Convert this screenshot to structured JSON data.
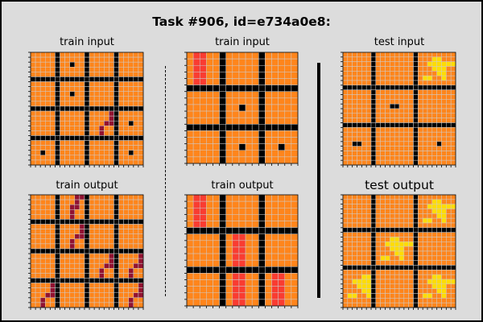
{
  "title": "Task #906, id=e734a0e8:",
  "palette": {
    "0": "#000000",
    "1": "#1e93ff",
    "2": "#f93c31",
    "3": "#4fcc30",
    "4": "#ffdc00",
    "5": "#999999",
    "6": "#e53aa3",
    "7": "#ff851b",
    "8": "#87d8f1",
    "9": "#921231"
  },
  "gridline_color": "#cccccc",
  "panels": [
    {
      "label": "train input",
      "grid": [
        "77777077777077777077777",
        "77777077777077777077777",
        "77777077077077777077777",
        "77777077777077777077777",
        "77777077777077777077777",
        "00000000000000000000000",
        "77777077777077777077777",
        "77777077777077777077777",
        "77777077077077777077777",
        "77777077777077777077777",
        "77777077777077777077777",
        "00000000000000000000000",
        "77777077777077779077777",
        "77777077777077779077777",
        "77777077777077799077077",
        "77777077777077977077777",
        "77777077777077977077777",
        "00000000000000000000000",
        "77777077777077777077777",
        "77777077777077777077777",
        "77077077777077777077077",
        "77777077777077777077777",
        "77777077777077777077777"
      ]
    },
    {
      "label": "train input",
      "grid": [
        "72277077777077777",
        "72277077777077777",
        "72277077777077777",
        "72277077777077777",
        "72277077777077777",
        "00000000000000000",
        "77777077777077777",
        "77777077777077777",
        "77777077077077777",
        "77777077777077777",
        "77777077777077777",
        "00000000000000000",
        "77777077777077777",
        "77777077777077777",
        "77777077077077077",
        "77777077777077777",
        "77777077777077777"
      ]
    },
    {
      "label": "test input",
      "grid": [
        "777777077777777077777777",
        "777777077777777077744777",
        "777777077777777077444444",
        "777777077777777077744477",
        "777777077777777077774477",
        "777777077777777074477477",
        "777777077777777077777777",
        "000000000000000000000000",
        "777777077777777077777777",
        "777777077777777077777777",
        "777777077777777077777777",
        "777777077700777077777777",
        "777777077777777077777777",
        "777777077777777077777777",
        "777777077777777077777777",
        "000000000000000000000000",
        "777777077777777077777777",
        "777777077777777077777777",
        "777777077777777077777777",
        "770077077777777077770777",
        "777777077777777077777777",
        "777777077777777077777777",
        "777777077777777077777777",
        "777777077777777077777777"
      ]
    },
    {
      "label": "train output",
      "grid": [
        "77777077799077777077777",
        "77777077797077777077777",
        "77777077997077777077777",
        "77777077977077777077777",
        "77777077977077777077777",
        "00000000000000000000000",
        "77777077779077777077777",
        "77777077779077777077777",
        "77777077799077777077777",
        "77777077977077777077777",
        "77777077977077777077777",
        "00000000000000000000000",
        "77777077777077779077779",
        "77777077777077779077779",
        "77777077777077799077799",
        "77777077777077977077977",
        "77777077777077977077977",
        "00000000000000000000000",
        "77779077777077777077779",
        "77779077777077777077779",
        "77799077777077777077799",
        "77977077777077777077977",
        "77977077777077777077977"
      ]
    },
    {
      "label": "train output",
      "grid": [
        "72277077777077777",
        "72277077777077777",
        "72277077777077777",
        "72277077777077777",
        "72277077777077777",
        "00000000000000000",
        "77777072277077777",
        "77777072277077777",
        "77777072277077777",
        "77777072277077777",
        "77777072277077777",
        "00000000000000000",
        "77777072277072277",
        "77777072277072277",
        "77777072277072277",
        "77777072277072277",
        "77777072277072277"
      ]
    },
    {
      "label": "test output",
      "grid": [
        "777777077777777077777777",
        "777777077777777077744777",
        "777777077777777077444444",
        "777777077777777077744477",
        "777777077777777077774477",
        "777777077777777074477477",
        "777777077777777077777777",
        "000000000000000000000000",
        "777777077777777077777777",
        "777777077744777077777777",
        "777777077444444077777777",
        "777777077744477077777777",
        "777777077774477077777777",
        "777777074477477077777777",
        "777777077777777077777777",
        "000000000000000000000000",
        "777777077777777077777777",
        "777744077777777077744777",
        "774444077777777077444444",
        "777444077777777077744477",
        "777744077777777077774477",
        "744774077777777074477477",
        "777777077777777077777777",
        "777777077777777077777777"
      ]
    }
  ]
}
